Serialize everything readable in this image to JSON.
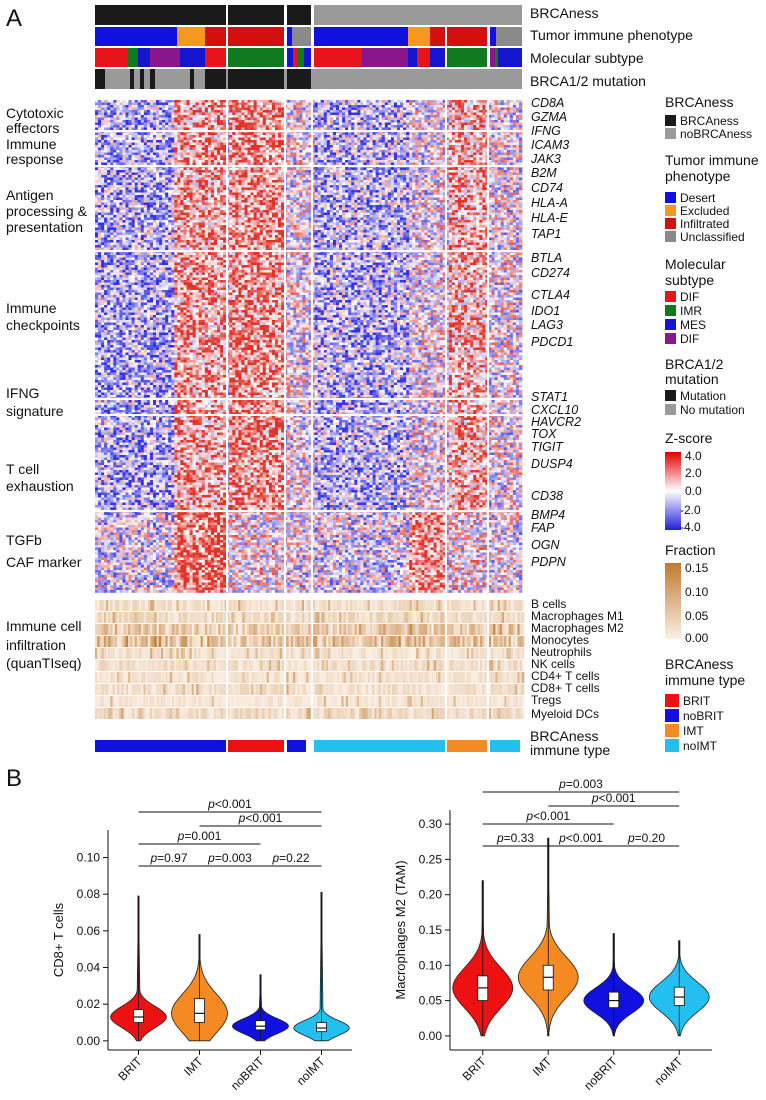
{
  "panel_labels": {
    "a": "A",
    "b": "B"
  },
  "colors": {
    "brcaness": "#1a1a1a",
    "nobrcaness": "#9a9a9a",
    "desert": "#1010e0",
    "excluded": "#f39a1e",
    "infiltrated": "#d40f0f",
    "unclassified": "#8a8a8a",
    "dif": "#e8141c",
    "imr": "#127a1e",
    "mes": "#1515d0",
    "dif2": "#8a168c",
    "mutation": "#1a1a1a",
    "nomutation": "#9a9a9a",
    "brit": "#ee1111",
    "nobrit": "#1010e0",
    "imt": "#f58a22",
    "noimt": "#22bff0"
  },
  "annotation_tracks": [
    "BRCAness",
    "Tumor immune phenotype",
    "Molecular subtype",
    "BRCA1/2 mutation"
  ],
  "row_groups": [
    {
      "lines": [
        "Cytotoxic",
        "effectors"
      ],
      "genes": [
        "CD8A",
        "GZMA",
        "IFNG"
      ]
    },
    {
      "lines": [
        "Immune",
        "response"
      ],
      "genes": [
        "ICAM3",
        "JAK3"
      ]
    },
    {
      "lines": [
        "Antigen",
        "processing &",
        "presentation"
      ],
      "genes": [
        "B2M",
        "CD74",
        "HLA-A",
        "HLA-E",
        "TAP1"
      ]
    },
    {
      "lines": [
        "Immune",
        "checkpoints"
      ],
      "genes": [
        "BTLA",
        "CD274",
        "CTLA4",
        "IDO1",
        "LAG3",
        "PDCD1"
      ]
    },
    {
      "lines": [
        "IFNG",
        "signature"
      ],
      "genes": [
        "STAT1",
        "CXCL10"
      ]
    },
    {
      "lines": [
        "T cell",
        "exhaustion"
      ],
      "genes": [
        "HAVCR2",
        "TOX",
        "TIGIT",
        "DUSP4",
        "CD38"
      ]
    },
    {
      "lines": [
        "TGFb",
        "CAF marker"
      ],
      "genes": [
        "BMP4",
        "FAP",
        "OGN",
        "PDPN"
      ]
    },
    {
      "lines": [
        "Immune cell",
        "infiltration",
        "(quanTIseq)"
      ],
      "genes": []
    }
  ],
  "cell_types": [
    "B cells",
    "Macrophages M1",
    "Macrophages M2",
    "Monocytes",
    "Neutrophils",
    "NK cells",
    "CD4+ T cells",
    "CD8+ T cells",
    "Tregs",
    "Myeloid DCs"
  ],
  "bottom_track": {
    "lines": [
      "BRCAness",
      "immune type"
    ]
  },
  "legends": {
    "brcaness": {
      "title": "BRCAness",
      "items": [
        "BRCAness",
        "noBRCAness"
      ]
    },
    "phenotype": {
      "title_lines": [
        "Tumor immune",
        "phenotype"
      ],
      "items": [
        "Desert",
        "Excluded",
        "Infiltrated",
        "Unclassified"
      ]
    },
    "subtype": {
      "title_lines": [
        "Molecular",
        "subtype"
      ],
      "items": [
        "DIF",
        "IMR",
        "MES",
        "DIF"
      ]
    },
    "mutation": {
      "title_lines": [
        "BRCA1/2",
        "mutation"
      ],
      "items": [
        "Mutation",
        "No mutation"
      ]
    },
    "zscore": {
      "title": "Z-score",
      "ticks": [
        "4.0",
        "2.0",
        "0.0",
        "-2.0",
        "-4.0"
      ]
    },
    "fraction": {
      "title": "Fraction",
      "ticks": [
        "0.15",
        "0.10",
        "0.05",
        "0.00"
      ]
    },
    "immune_type": {
      "title_lines": [
        "BRCAness",
        "immune type"
      ],
      "items": [
        "BRIT",
        "noBRIT",
        "IMT",
        "noIMT"
      ]
    }
  },
  "chart_data": [
    {
      "type": "violin",
      "title": "",
      "ylabel": "CD8+ T cells",
      "xlabel": "",
      "categories": [
        "BRIT",
        "IMT",
        "noBRIT",
        "noIMT"
      ],
      "ylim": [
        -0.005,
        0.115
      ],
      "yticks": [
        "0.00",
        "0.02",
        "0.04",
        "0.06",
        "0.08",
        "0.10"
      ],
      "ytick_values": [
        0,
        0.02,
        0.04,
        0.06,
        0.08,
        0.1
      ],
      "box_stats": [
        {
          "name": "BRIT",
          "q1": 0.01,
          "median": 0.013,
          "q3": 0.017,
          "min": 0.0,
          "max": 0.079
        },
        {
          "name": "IMT",
          "q1": 0.01,
          "median": 0.015,
          "q3": 0.023,
          "min": 0.0,
          "max": 0.058
        },
        {
          "name": "noBRIT",
          "q1": 0.006,
          "median": 0.008,
          "q3": 0.011,
          "min": 0.0,
          "max": 0.036
        },
        {
          "name": "noIMT",
          "q1": 0.005,
          "median": 0.007,
          "q3": 0.01,
          "min": 0.0,
          "max": 0.081
        }
      ],
      "comparisons": [
        {
          "groups": [
            "BRIT",
            "noIMT"
          ],
          "label": "p<0.001"
        },
        {
          "groups": [
            "IMT",
            "noIMT"
          ],
          "label": "p<0.001"
        },
        {
          "groups": [
            "BRIT",
            "noBRIT"
          ],
          "label": "p=0.001"
        },
        {
          "groups": [
            "BRIT",
            "IMT"
          ],
          "label": "p=0.97"
        },
        {
          "groups": [
            "IMT",
            "noBRIT"
          ],
          "label": "p=0.003"
        },
        {
          "groups": [
            "noBRIT",
            "noIMT"
          ],
          "label": "p=0.22"
        }
      ]
    },
    {
      "type": "violin",
      "title": "",
      "ylabel": "Macrophages M2 (TAM)",
      "xlabel": "",
      "categories": [
        "BRIT",
        "IMT",
        "noBRIT",
        "noIMT"
      ],
      "ylim": [
        -0.02,
        0.32
      ],
      "yticks": [
        "0.00",
        "0.05",
        "0.10",
        "0.15",
        "0.20",
        "0.25",
        "0.30"
      ],
      "ytick_values": [
        0,
        0.05,
        0.1,
        0.15,
        0.2,
        0.25,
        0.3
      ],
      "box_stats": [
        {
          "name": "BRIT",
          "q1": 0.05,
          "median": 0.068,
          "q3": 0.085,
          "min": 0.0,
          "max": 0.22
        },
        {
          "name": "IMT",
          "q1": 0.065,
          "median": 0.083,
          "q3": 0.1,
          "min": 0.0,
          "max": 0.28
        },
        {
          "name": "noBRIT",
          "q1": 0.04,
          "median": 0.05,
          "q3": 0.062,
          "min": 0.0,
          "max": 0.145
        },
        {
          "name": "noIMT",
          "q1": 0.043,
          "median": 0.055,
          "q3": 0.069,
          "min": 0.0,
          "max": 0.135
        }
      ],
      "comparisons": [
        {
          "groups": [
            "BRIT",
            "noIMT"
          ],
          "label": "p=0.003"
        },
        {
          "groups": [
            "IMT",
            "noIMT"
          ],
          "label": "p<0.001"
        },
        {
          "groups": [
            "BRIT",
            "noBRIT"
          ],
          "label": "p<0.001"
        },
        {
          "groups": [
            "BRIT",
            "IMT"
          ],
          "label": "p=0.33"
        },
        {
          "groups": [
            "IMT",
            "noBRIT"
          ],
          "label": "p<0.001"
        },
        {
          "groups": [
            "noBRIT",
            "noIMT"
          ],
          "label": "p=0.20"
        }
      ]
    }
  ]
}
